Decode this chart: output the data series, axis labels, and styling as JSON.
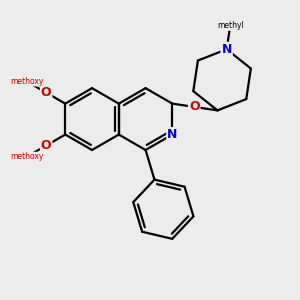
{
  "bg_color": "#ececec",
  "bond_color": "#000000",
  "nitrogen_color": "#0000cc",
  "oxygen_color": "#cc0000",
  "line_width": 1.6,
  "figsize": [
    3.0,
    3.0
  ],
  "dpi": 100,
  "xlim": [
    0,
    10
  ],
  "ylim": [
    0,
    10
  ]
}
